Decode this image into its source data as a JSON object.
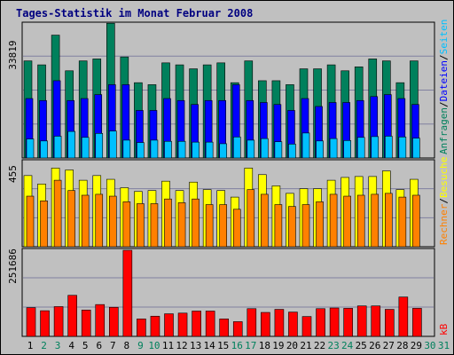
{
  "title": "Tages-Statistik im Monat Februar 2008",
  "colors": {
    "background": "#c0c0c0",
    "title": "#000080",
    "anfragen": "#00805c",
    "dateien": "#0000ff",
    "seiten": "#00c0ff",
    "besuche": "#ffff00",
    "rechner": "#ff8000",
    "kb": "#ff0000",
    "grid": "#8080a0",
    "weekend": "#00805c",
    "weekday": "#000000"
  },
  "chart_data": {
    "type": "bar",
    "title": "Tages-Statistik im Monat Februar 2008",
    "days": [
      "1",
      "2",
      "3",
      "4",
      "5",
      "6",
      "7",
      "8",
      "9",
      "10",
      "11",
      "12",
      "13",
      "14",
      "15",
      "16",
      "17",
      "18",
      "19",
      "20",
      "21",
      "22",
      "23",
      "24",
      "25",
      "26",
      "27",
      "28",
      "29",
      "30",
      "31"
    ],
    "weekend_days": [
      "2",
      "3",
      "9",
      "10",
      "16",
      "17",
      "23",
      "24",
      "30",
      "31"
    ],
    "panels": [
      {
        "id": "hits",
        "max_label": "33819",
        "ymax": 33819,
        "right_labels": [
          {
            "text": "Anfragen",
            "color_key": "anfragen"
          },
          {
            "text": "/",
            "color_key": "weekday"
          },
          {
            "text": "Dateien",
            "color_key": "dateien"
          },
          {
            "text": "/",
            "color_key": "weekday"
          },
          {
            "text": "Seiten",
            "color_key": "seiten"
          }
        ],
        "series": [
          {
            "name": "Anfragen",
            "color_key": "anfragen",
            "values": [
              24500,
              23500,
              31000,
              22000,
              24500,
              25000,
              34000,
              25500,
              19000,
              18500,
              24000,
              23500,
              22500,
              23500,
              24000,
              19000,
              24500,
              19500,
              19500,
              18500,
              22500,
              22500,
              23500,
              22000,
              23000,
              25000,
              24500,
              19000,
              24500
            ]
          },
          {
            "name": "Dateien",
            "color_key": "dateien",
            "values": [
              15000,
              14500,
              19500,
              14500,
              15000,
              16000,
              18500,
              18500,
              12000,
              12000,
              15000,
              14500,
              13500,
              14500,
              14500,
              18500,
              14500,
              14000,
              13500,
              12000,
              15000,
              13000,
              14000,
              14000,
              14500,
              15500,
              16000,
              15000,
              13500
            ]
          },
          {
            "name": "Seiten",
            "color_key": "seiten",
            "values": [
              4800,
              4300,
              5500,
              6700,
              5200,
              6200,
              6800,
              4500,
              3900,
              4500,
              4200,
              4200,
              4000,
              4000,
              3600,
              5300,
              4500,
              4900,
              4100,
              3500,
              6300,
              4300,
              4900,
              4400,
              5200,
              5400,
              5500,
              5300,
              5000
            ]
          }
        ]
      },
      {
        "id": "visits",
        "max_label": "455",
        "ymax": 455,
        "right_labels": [
          {
            "text": "Rechner",
            "color_key": "rechner"
          },
          {
            "text": "/",
            "color_key": "weekday"
          },
          {
            "text": "Besuche",
            "color_key": "besuche"
          }
        ],
        "series": [
          {
            "name": "Besuche",
            "color_key": "besuche",
            "values": [
              380,
              335,
              420,
              410,
              355,
              380,
              360,
              315,
              295,
              300,
              350,
              300,
              345,
              305,
              300,
              265,
              420,
              385,
              325,
              285,
              310,
              310,
              355,
              370,
              375,
              375,
              405,
              305,
              360
            ]
          },
          {
            "name": "Rechner",
            "color_key": "rechner",
            "values": [
              270,
              245,
              355,
              300,
              275,
              280,
              270,
              240,
              230,
              230,
              255,
              235,
              255,
              225,
              225,
              200,
              305,
              280,
              225,
              215,
              225,
              240,
              280,
              270,
              275,
              280,
              285,
              265,
              275
            ]
          }
        ]
      },
      {
        "id": "kb",
        "max_label": "251686",
        "ymax": 251686,
        "right_labels": [
          {
            "text": "kB",
            "color_key": "kb"
          }
        ],
        "series": [
          {
            "name": "kB",
            "color_key": "kb",
            "values": [
              84000,
              75000,
              87000,
              120000,
              77000,
              93000,
              85000,
              251686,
              51000,
              59000,
              66000,
              68000,
              74000,
              74000,
              51000,
              43000,
              81000,
              70000,
              79000,
              71000,
              58000,
              81000,
              83000,
              82000,
              89000,
              89000,
              79000,
              115000,
              82000
            ]
          }
        ]
      }
    ]
  }
}
